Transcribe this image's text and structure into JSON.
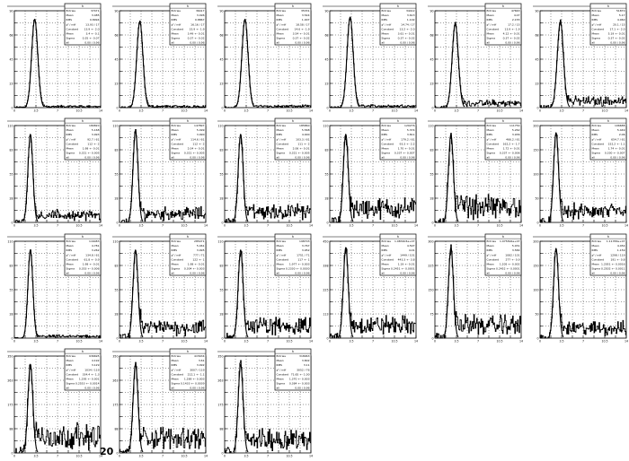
{
  "footer": {
    "label": "20"
  },
  "colors": {
    "line": "#000000",
    "background": "#ffffff",
    "frame": "#000000"
  },
  "chart_data": [
    {
      "type": "line",
      "title": "",
      "hist_label": "h",
      "entries": "37471",
      "mean": "3.485",
      "rms": "0.8994",
      "chi2": "13.93 / 17",
      "constant": "13.9 +- 2.0",
      "mean_fit": "3.4 +- 0.1",
      "sigma": "0.35 +- 0.07",
      "all": "0.00 / 0.96",
      "xlim": [
        0,
        14
      ],
      "ylim": [
        0,
        90
      ],
      "peak_x": 3.3,
      "peak_y": 82,
      "width": 0.5,
      "noise": 1
    },
    {
      "type": "line",
      "title": "",
      "hist_label": "h",
      "entries": "36417",
      "mean": "3.496",
      "rms": "0.8867",
      "chi2": "16.16 / 17",
      "constant": "15.9 +- 1.9",
      "mean_fit": "3.49 +- 0.01",
      "sigma": "0.37 +- 0.02",
      "all": "0.00 / 0.96",
      "xlim": [
        0,
        14
      ],
      "ylim": [
        0,
        90
      ],
      "peak_x": 3.3,
      "peak_y": 80,
      "width": 0.5,
      "noise": 1
    },
    {
      "type": "line",
      "title": "",
      "hist_label": "h",
      "entries": "35331",
      "mean": "3.544",
      "rms": "1.007",
      "chi2": "18.58 / 17",
      "constant": "14.6 +- 1.9",
      "mean_fit": "3.54 +- 0.01",
      "sigma": "0.37 +- 0.02",
      "all": "0.00 / 0.96",
      "xlim": [
        0,
        14
      ],
      "ylim": [
        0,
        90
      ],
      "peak_x": 3.3,
      "peak_y": 82,
      "width": 0.5,
      "noise": 1.2
    },
    {
      "type": "line",
      "title": "",
      "hist_label": "h",
      "entries": "34412",
      "mean": "3.613",
      "rms": "1.102",
      "chi2": "14.74 / 17",
      "constant": "13.2 +- 2.0",
      "mean_fit": "3.61 +- 0.01",
      "sigma": "0.37 +- 0.02",
      "all": "0.00 / 0.96",
      "xlim": [
        0,
        14
      ],
      "ylim": [
        0,
        90
      ],
      "peak_x": 3.3,
      "peak_y": 84,
      "width": 0.5,
      "noise": 1.5
    },
    {
      "type": "line",
      "title": "",
      "hist_label": "h",
      "entries": "47663",
      "mean": "4.07",
      "rms": "2.155",
      "chi2": "17.2 / 15",
      "constant": "13.9 +- 1.9",
      "mean_fit": "4.12 +- 0.01",
      "sigma": "0.37 +- 0.02",
      "all": "0.00 / 0.96",
      "xlim": [
        0,
        14
      ],
      "ylim": [
        0,
        90
      ],
      "peak_x": 3.3,
      "peak_y": 78,
      "width": 0.5,
      "noise": 4
    },
    {
      "type": "line",
      "title": "",
      "hist_label": "h",
      "entries": "51870",
      "mean": "5.17",
      "rms": "4.060",
      "chi2": "20.1 / 15",
      "constant": "17.1 +- 2.0",
      "mean_fit": "5.19 +- 0.01",
      "sigma": "0.37 +- 0.02",
      "all": "0.00 / 0.96",
      "xlim": [
        0,
        14
      ],
      "ylim": [
        0,
        90
      ],
      "peak_x": 3.3,
      "peak_y": 80,
      "width": 0.5,
      "noise": 6
    },
    {
      "type": "line",
      "title": "",
      "hist_label": "h",
      "entries": "180820",
      "mean": "5.168",
      "rms": "3.993",
      "chi2": "92.7 / 61",
      "constant": "112 +- 2",
      "mean_fit": "1.98 +- 0.01",
      "sigma": "0.321 +- 0.005",
      "all": "0.00 / 0.96",
      "xlim": [
        0,
        14
      ],
      "ylim": [
        0,
        110
      ],
      "peak_x": 2.6,
      "peak_y": 100,
      "width": 0.4,
      "noise": 8
    },
    {
      "type": "line",
      "title": "",
      "hist_label": "h",
      "entries": "147897",
      "mean": "5.499",
      "rms": "3.990",
      "chi2": "114.6 / 61",
      "constant": "112 +- 2",
      "mean_fit": "2.04 +- 0.01",
      "sigma": "0.321 +- 0.005",
      "all": "0.00 / 0.96",
      "xlim": [
        0,
        14
      ],
      "ylim": [
        0,
        110
      ],
      "peak_x": 2.6,
      "peak_y": 104,
      "width": 0.4,
      "noise": 10
    },
    {
      "type": "line",
      "title": "",
      "hist_label": "h",
      "entries": "185860",
      "mean": "5.568",
      "rms": "4.000",
      "chi2": "103.3 / 61",
      "constant": "111 +- 2",
      "mean_fit": "2.06 +- 0.01",
      "sigma": "0.321 +- 0.005",
      "all": "0.00 / 0.96",
      "xlim": [
        0,
        14
      ],
      "ylim": [
        0,
        110
      ],
      "peak_x": 2.6,
      "peak_y": 100,
      "width": 0.4,
      "noise": 12
    },
    {
      "type": "line",
      "title": "",
      "hist_label": "h",
      "entries": "120276",
      "mean": "5.374",
      "rms": "3.811",
      "chi2": "179.2 / 61",
      "constant": "93.3 +- 2.2",
      "mean_fit": "1.70 +- 0.01",
      "sigma": "0.337 +- 0.007",
      "all": "0.00 / 0.96",
      "xlim": [
        0,
        14
      ],
      "ylim": [
        0,
        110
      ],
      "peak_x": 2.6,
      "peak_y": 100,
      "width": 0.4,
      "noise": 16
    },
    {
      "type": "line",
      "title": "",
      "hist_label": "h",
      "entries": "111754",
      "mean": "5.262",
      "rms": "3.936",
      "chi2": "466.2 / 61",
      "constant": "162.2 +- 1.7",
      "mean_fit": "1.72 +- 0.01",
      "sigma": "0.337 +- 0.006",
      "all": "0.00 / 0.96",
      "xlim": [
        0,
        14
      ],
      "ylim": [
        0,
        110
      ],
      "peak_x": 2.6,
      "peak_y": 100,
      "width": 0.4,
      "noise": 18
    },
    {
      "type": "line",
      "title": "",
      "hist_label": "h",
      "entries": "106688",
      "mean": "5.449",
      "rms": "2.06",
      "chi2": "654.7 / 61",
      "constant": "152.2 +- 1.1",
      "mean_fit": "1.74 +- 0.01",
      "sigma": "0.330 +- 0.007",
      "all": "0.00 / 0.96",
      "xlim": [
        0,
        14
      ],
      "ylim": [
        0,
        200
      ],
      "peak_x": 2.6,
      "peak_y": 185,
      "width": 0.4,
      "noise": 22
    },
    {
      "type": "line",
      "title": "",
      "hist_label": "h",
      "entries": "116483",
      "mean": "4.781",
      "rms": "3.262",
      "chi2": "134.8 / 61",
      "constant": "61.8 +- 0.9",
      "mean_fit": "1.98 +- 0.01",
      "sigma": "0.353 +- 0.006",
      "all": "0.00 / 0.96",
      "xlim": [
        0,
        14
      ],
      "ylim": [
        0,
        110
      ],
      "peak_x": 2.6,
      "peak_y": 100,
      "width": 0.4,
      "noise": 2
    },
    {
      "type": "line",
      "title": "",
      "hist_label": "h",
      "entries": "285471",
      "mean": "5.461",
      "rms": "3.995",
      "chi2": "777 / 71",
      "constant": "122 +- 1",
      "mean_fit": "1.98 +- 0.01",
      "sigma": "0.304 +- 0.003",
      "all": "0.00 / 0.96",
      "xlim": [
        0,
        14
      ],
      "ylim": [
        0,
        110
      ],
      "peak_x": 2.6,
      "peak_y": 100,
      "width": 0.4,
      "noise": 12
    },
    {
      "type": "line",
      "title": "",
      "hist_label": "h",
      "entries": "198703",
      "mean": "3.767",
      "rms": "3.952",
      "chi2": "1751 / 71",
      "constant": "117 +- 1",
      "mean_fit": "1.977 +- 0.003",
      "sigma": "0.2330 +- 0.0030",
      "all": "0.00 / 0.96",
      "xlim": [
        0,
        14
      ],
      "ylim": [
        0,
        110
      ],
      "peak_x": 2.6,
      "peak_y": 100,
      "width": 0.4,
      "noise": 14
    },
    {
      "type": "line",
      "title": "",
      "hist_label": "h",
      "entries": "1.083403e+07",
      "mean": "4.597",
      "rms": "4.01",
      "chi2": "1449 / 101",
      "constant": "443.3 +- 3.8",
      "mean_fit": "1.19 +- 0.01",
      "sigma": "0.2451 +- 0.0001",
      "all": "0.00 / 0.96",
      "xlim": [
        0,
        14
      ],
      "ylim": [
        0,
        450
      ],
      "peak_x": 2.6,
      "peak_y": 420,
      "width": 0.4,
      "noise": 60
    },
    {
      "type": "line",
      "title": "",
      "hist_label": "h",
      "entries": "1.075816e+07",
      "mean": "5.031",
      "rms": "3.584",
      "chi2": "1082 / 101",
      "constant": "277 +- 0.9",
      "mean_fit": "1.205 +- 0.002",
      "sigma": "0.2452 +- 0.0001",
      "all": "0.00 / 0.96",
      "xlim": [
        0,
        14
      ],
      "ylim": [
        0,
        300
      ],
      "peak_x": 2.6,
      "peak_y": 280,
      "width": 0.4,
      "noise": 40
    },
    {
      "type": "line",
      "title": "",
      "hist_label": "h",
      "entries": "1.11783e+07",
      "mean": "4.454",
      "rms": "1.159",
      "chi2": "1298 / 119",
      "constant": "191 +- 0.8",
      "mean_fit": "1.2051 +- 0.0016",
      "sigma": "0.2502 +- 0.0011",
      "all": "0.00 / 0.96",
      "xlim": [
        0,
        14
      ],
      "ylim": [
        0,
        200
      ],
      "peak_x": 2.6,
      "peak_y": 185,
      "width": 0.4,
      "noise": 20
    },
    {
      "type": "line",
      "title": "",
      "hist_label": "h",
      "entries": "936695",
      "mean": "4.192",
      "rms": "3.129",
      "chi2": "1034 / 119",
      "constant": "334.4 +- 1.3",
      "mean_fit": "1.295 +- 0.001",
      "sigma": "0.2553 +- 0.0014",
      "all": "0.00 / 0.96",
      "xlim": [
        0,
        14
      ],
      "ylim": [
        0,
        350
      ],
      "peak_x": 2.6,
      "peak_y": 320,
      "width": 0.4,
      "noise": 60
    },
    {
      "type": "line",
      "title": "",
      "hist_label": "h",
      "entries": "415634",
      "mean": "3.61",
      "rms": "3.092",
      "chi2": "3007 / 119",
      "constant": "212.1 +- 1.1",
      "mean_fit": "1.289 +- 0.003",
      "sigma": "0.1433 +- 0.0039",
      "all": "0.00 / 0.96",
      "xlim": [
        0,
        14
      ],
      "ylim": [
        0,
        350
      ],
      "peak_x": 2.6,
      "peak_y": 320,
      "width": 0.4,
      "noise": 55
    },
    {
      "type": "line",
      "title": "",
      "hist_label": "h",
      "entries": "318963",
      "mean": "3.802",
      "rms": "3.11",
      "chi2": "3052 / 76",
      "constant": "71.65 +- 1.00",
      "mean_fit": "1.370 +- 0.003",
      "sigma": "0.384 +- 0.003",
      "all": "0.00 / 0.96",
      "xlim": [
        0,
        14
      ],
      "ylim": [
        0,
        350
      ],
      "peak_x": 2.6,
      "peak_y": 320,
      "width": 0.4,
      "noise": 50
    }
  ]
}
